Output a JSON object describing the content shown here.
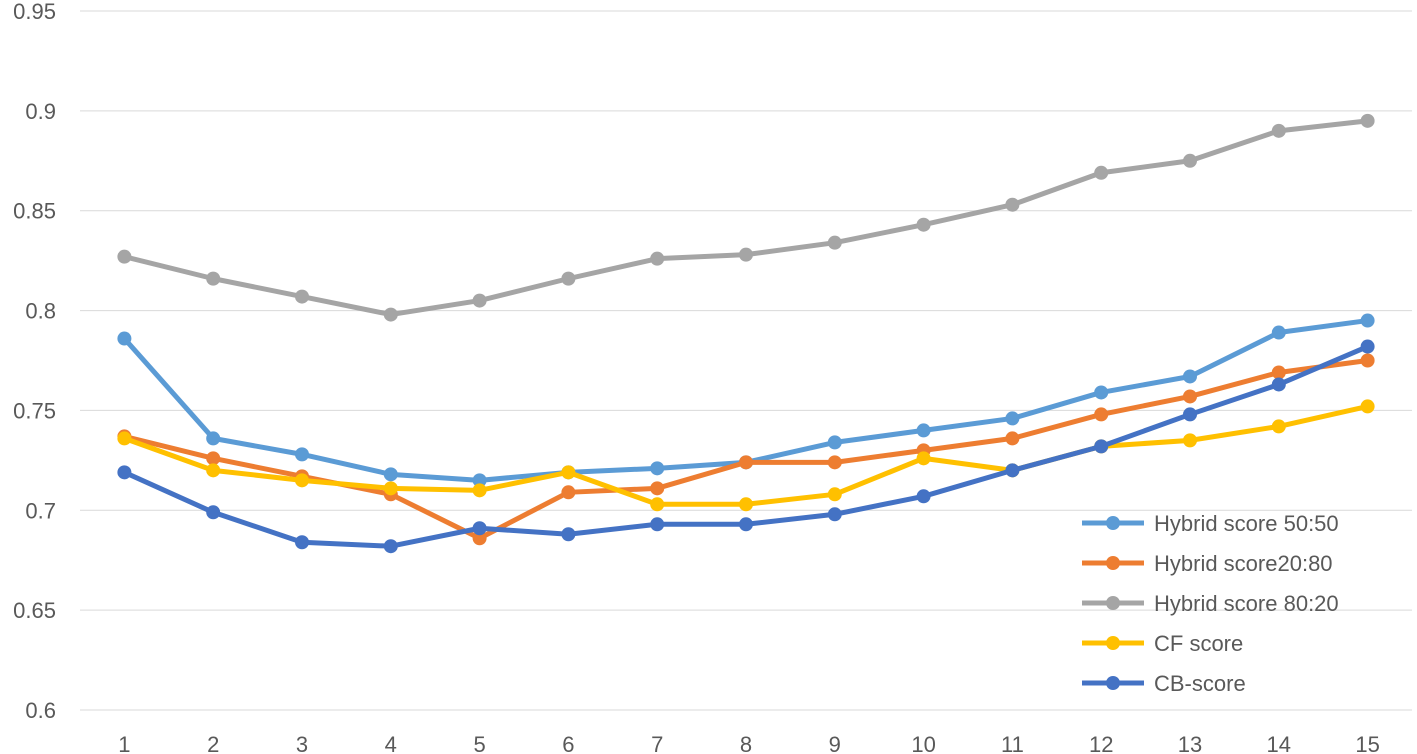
{
  "chart_data": {
    "type": "line",
    "title": "",
    "xlabel": "",
    "ylabel": "",
    "categories": [
      "1",
      "2",
      "3",
      "4",
      "5",
      "6",
      "7",
      "8",
      "9",
      "10",
      "11",
      "12",
      "13",
      "14",
      "15"
    ],
    "ylim": [
      0.6,
      0.95
    ],
    "yticks": [
      "0.6",
      "0.65",
      "0.7",
      "0.75",
      "0.8",
      "0.85",
      "0.9",
      "0.95"
    ],
    "grid": true,
    "legend_position": "bottom-right",
    "series": [
      {
        "name": "Hybrid score 50:50",
        "color": "#5b9bd5",
        "values": [
          0.786,
          0.736,
          0.728,
          0.718,
          0.715,
          0.719,
          0.721,
          0.724,
          0.734,
          0.74,
          0.746,
          0.759,
          0.767,
          0.789,
          0.795
        ]
      },
      {
        "name": "Hybrid score20:80",
        "color": "#ed7d31",
        "values": [
          0.737,
          0.726,
          0.717,
          0.708,
          0.686,
          0.709,
          0.711,
          0.724,
          0.724,
          0.73,
          0.736,
          0.748,
          0.757,
          0.769,
          0.775
        ]
      },
      {
        "name": "Hybrid score 80:20",
        "color": "#a5a5a5",
        "values": [
          0.827,
          0.816,
          0.807,
          0.798,
          0.805,
          0.816,
          0.826,
          0.828,
          0.834,
          0.843,
          0.853,
          0.869,
          0.875,
          0.89,
          0.895
        ]
      },
      {
        "name": "CF score",
        "color": "#ffc000",
        "values": [
          0.736,
          0.72,
          0.715,
          0.711,
          0.71,
          0.719,
          0.703,
          0.703,
          0.708,
          0.726,
          0.72,
          0.732,
          0.735,
          0.742,
          0.752
        ]
      },
      {
        "name": "CB-score",
        "color": "#4472c4",
        "values": [
          0.719,
          0.699,
          0.684,
          0.682,
          0.691,
          0.688,
          0.693,
          0.693,
          0.698,
          0.707,
          0.72,
          0.732,
          0.748,
          0.763,
          0.782
        ]
      }
    ]
  }
}
